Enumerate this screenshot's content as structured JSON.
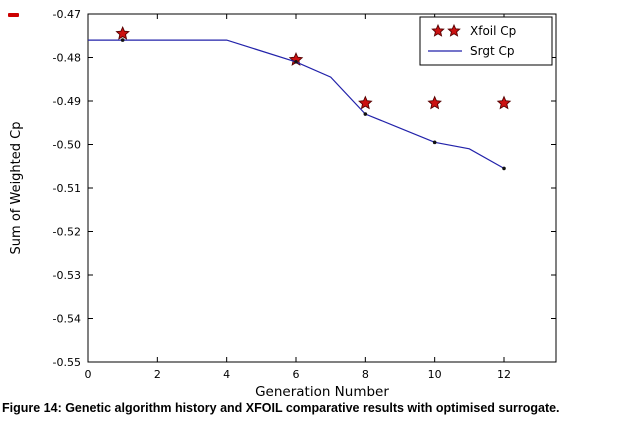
{
  "caption": "Figure 14: Genetic algorithm history and XFOIL comparative results with optimised surrogate.",
  "colors": {
    "line": "#2222aa",
    "star_fill": "#cc1111",
    "star_edge": "#550000",
    "marker": "#111111",
    "axis": "#000000",
    "stray_mark": "#cc0000"
  },
  "chart_data": {
    "type": "line",
    "title": "",
    "xlabel": "Generation Number",
    "ylabel": "Sum of Weighted Cp",
    "xlim": [
      0,
      13.5
    ],
    "ylim": [
      -0.55,
      -0.47
    ],
    "xticks": [
      0,
      2,
      4,
      6,
      8,
      10,
      12
    ],
    "yticks": [
      -0.55,
      -0.54,
      -0.53,
      -0.52,
      -0.51,
      -0.5,
      -0.49,
      -0.48,
      -0.47
    ],
    "grid": false,
    "legend_position": "upper right",
    "legend": [
      "Xfoil Cp",
      "Srgt Cp"
    ],
    "series": [
      {
        "name": "Xfoil Cp",
        "type": "scatter",
        "marker": "star",
        "x": [
          1,
          6,
          8,
          10,
          12
        ],
        "y": [
          -0.4745,
          -0.4805,
          -0.4905,
          -0.4905,
          -0.4905
        ]
      },
      {
        "name": "Srgt Cp",
        "type": "line",
        "x": [
          0,
          4,
          6,
          7,
          8,
          10,
          11,
          12
        ],
        "y": [
          -0.476,
          -0.476,
          -0.481,
          -0.4845,
          -0.493,
          -0.4995,
          -0.501,
          -0.5055
        ],
        "markers_x": [
          1,
          6,
          8,
          10,
          12
        ],
        "markers_y": [
          -0.476,
          -0.481,
          -0.493,
          -0.4995,
          -0.5055
        ]
      }
    ]
  }
}
